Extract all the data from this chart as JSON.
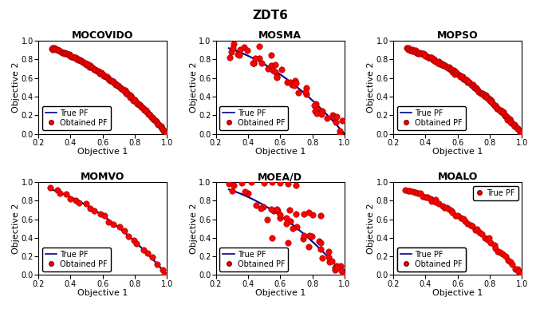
{
  "title": "ZDT6",
  "xlabel": "Objective 1",
  "ylabel": "Objective 2",
  "xlim": [
    0.2,
    1.0
  ],
  "ylim": [
    0.0,
    1.0
  ],
  "xticks": [
    0.2,
    0.4,
    0.6,
    0.8,
    1.0
  ],
  "yticks": [
    0.0,
    0.2,
    0.4,
    0.6,
    0.8,
    1.0
  ],
  "true_pf_color": "#00008B",
  "obtained_pf_color": "#FF0000",
  "obtained_pf_edge": "#8B0000",
  "marker_size": 6,
  "line_width": 1.5,
  "title_fontsize": 9,
  "label_fontsize": 8,
  "tick_fontsize": 7,
  "legend_fontsize": 7,
  "background_color": "#ffffff",
  "subplot_titles": [
    "MOCOVIDO",
    "MOSMA",
    "MOPSO",
    "MOMVO",
    "MOEA/D",
    "MOALO"
  ]
}
